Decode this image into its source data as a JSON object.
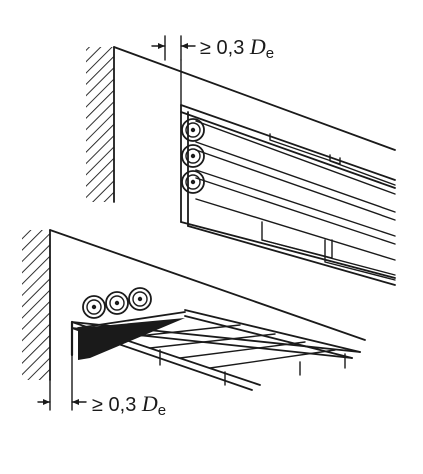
{
  "dimensions": {
    "top": {
      "prefix": "≥ 0,3 ",
      "symbol": "D",
      "subscript": "e"
    },
    "bottom": {
      "prefix": "≥ 0,3 ",
      "symbol": "D",
      "subscript": "e"
    }
  }
}
